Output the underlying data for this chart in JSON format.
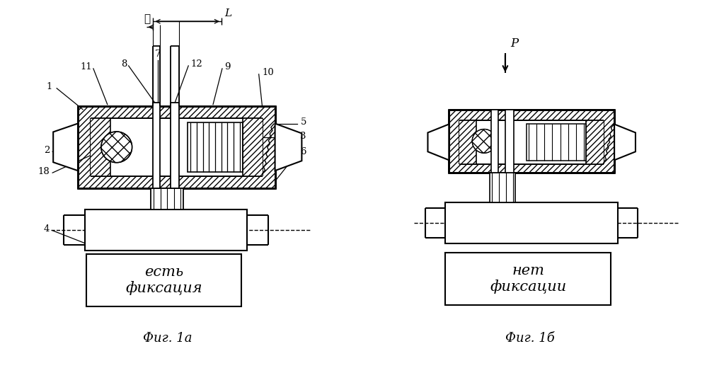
{
  "bg_color": "#ffffff",
  "lc": "#000000",
  "fig1a_label": "есть\nфиксация",
  "fig1b_label": "нет\nфиксации",
  "fig1a_caption": "Фиг. 1а",
  "fig1b_caption": "Фиг. 1б",
  "label_l": "ℓ",
  "label_L": "L",
  "label_P": "P"
}
